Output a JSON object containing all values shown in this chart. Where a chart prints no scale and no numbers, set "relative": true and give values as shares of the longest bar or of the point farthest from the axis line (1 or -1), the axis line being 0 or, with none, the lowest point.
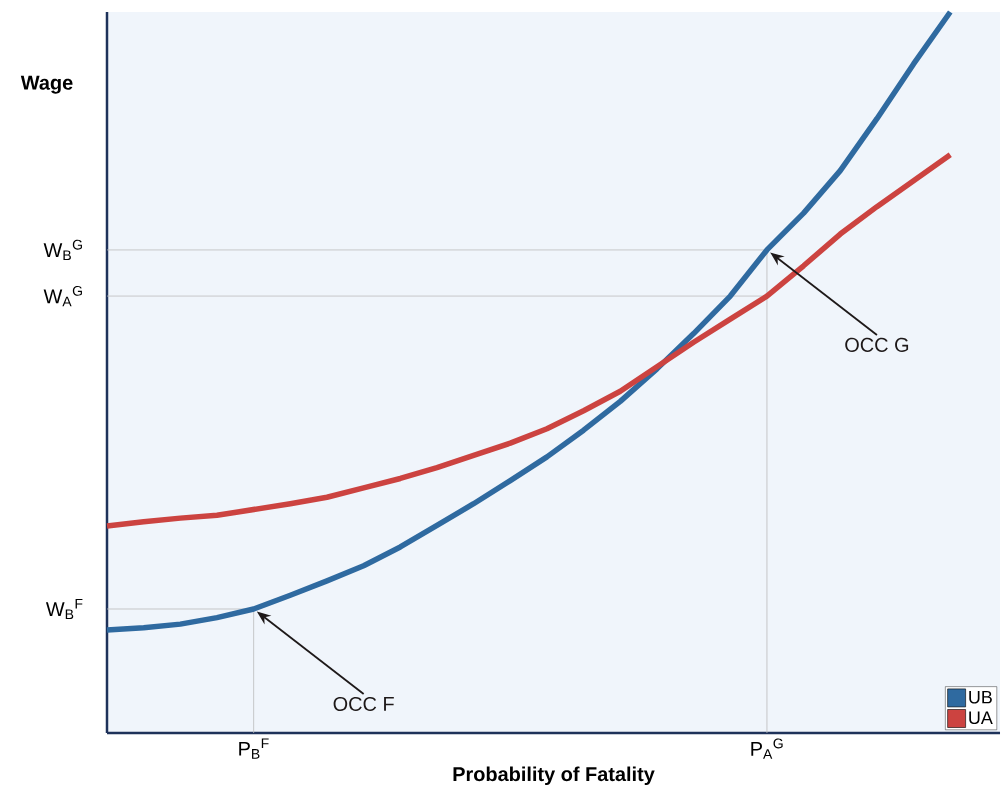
{
  "chart_data": {
    "type": "line",
    "relative": true,
    "xlabel": "Probability of Fatality",
    "ylabel": "Wage",
    "categories": [
      null,
      null,
      null,
      null,
      "P$_{B}$$^{F}$",
      null,
      null,
      null,
      null,
      null,
      null,
      null,
      null,
      null,
      null,
      null,
      null,
      null,
      "P$_{A}$$^{G}$",
      null,
      null,
      null,
      null,
      null
    ],
    "series": [
      {
        "name": "UB",
        "color": "#2f6aa0",
        "values": [
          0.143,
          0.146,
          0.151,
          0.16,
          0.172,
          0.191,
          0.211,
          0.232,
          0.258,
          0.288,
          0.318,
          0.35,
          0.383,
          0.42,
          0.46,
          0.505,
          0.554,
          0.606,
          0.67,
          0.721,
          0.78,
          0.852,
          0.928,
          1.0
        ]
      },
      {
        "name": "UA",
        "color": "#cc4340",
        "values": [
          0.287,
          0.293,
          0.298,
          0.302,
          0.31,
          0.318,
          0.327,
          0.34,
          0.353,
          0.368,
          0.385,
          0.402,
          0.422,
          0.447,
          0.474,
          0.508,
          0.542,
          0.574,
          0.606,
          0.648,
          0.692,
          0.73,
          0.766,
          0.802
        ]
      }
    ],
    "ref_lines": [
      {
        "axis": "y",
        "value": 0.67,
        "label": "W$_{B}$$^{G}$",
        "color": "#bbbbbb"
      },
      {
        "axis": "y",
        "value": 0.606,
        "label": "W$_{A}$$^{G}$",
        "color": "#bbbbbb"
      },
      {
        "axis": "y",
        "value": 0.172,
        "label": "W$_{B}$$^{F}$",
        "color": "#bbbbbb"
      },
      {
        "axis": "x",
        "value": "P$_{B}$$^{F}$",
        "color": "#bbbbbb"
      },
      {
        "axis": "x",
        "value": "P$_{A}$$^{G}$",
        "color": "#bbbbbb"
      }
    ],
    "annotations": [
      "OCC F",
      "OCC G"
    ],
    "legend": "bottom right",
    "marker": "none",
    "line_style": "solid"
  }
}
